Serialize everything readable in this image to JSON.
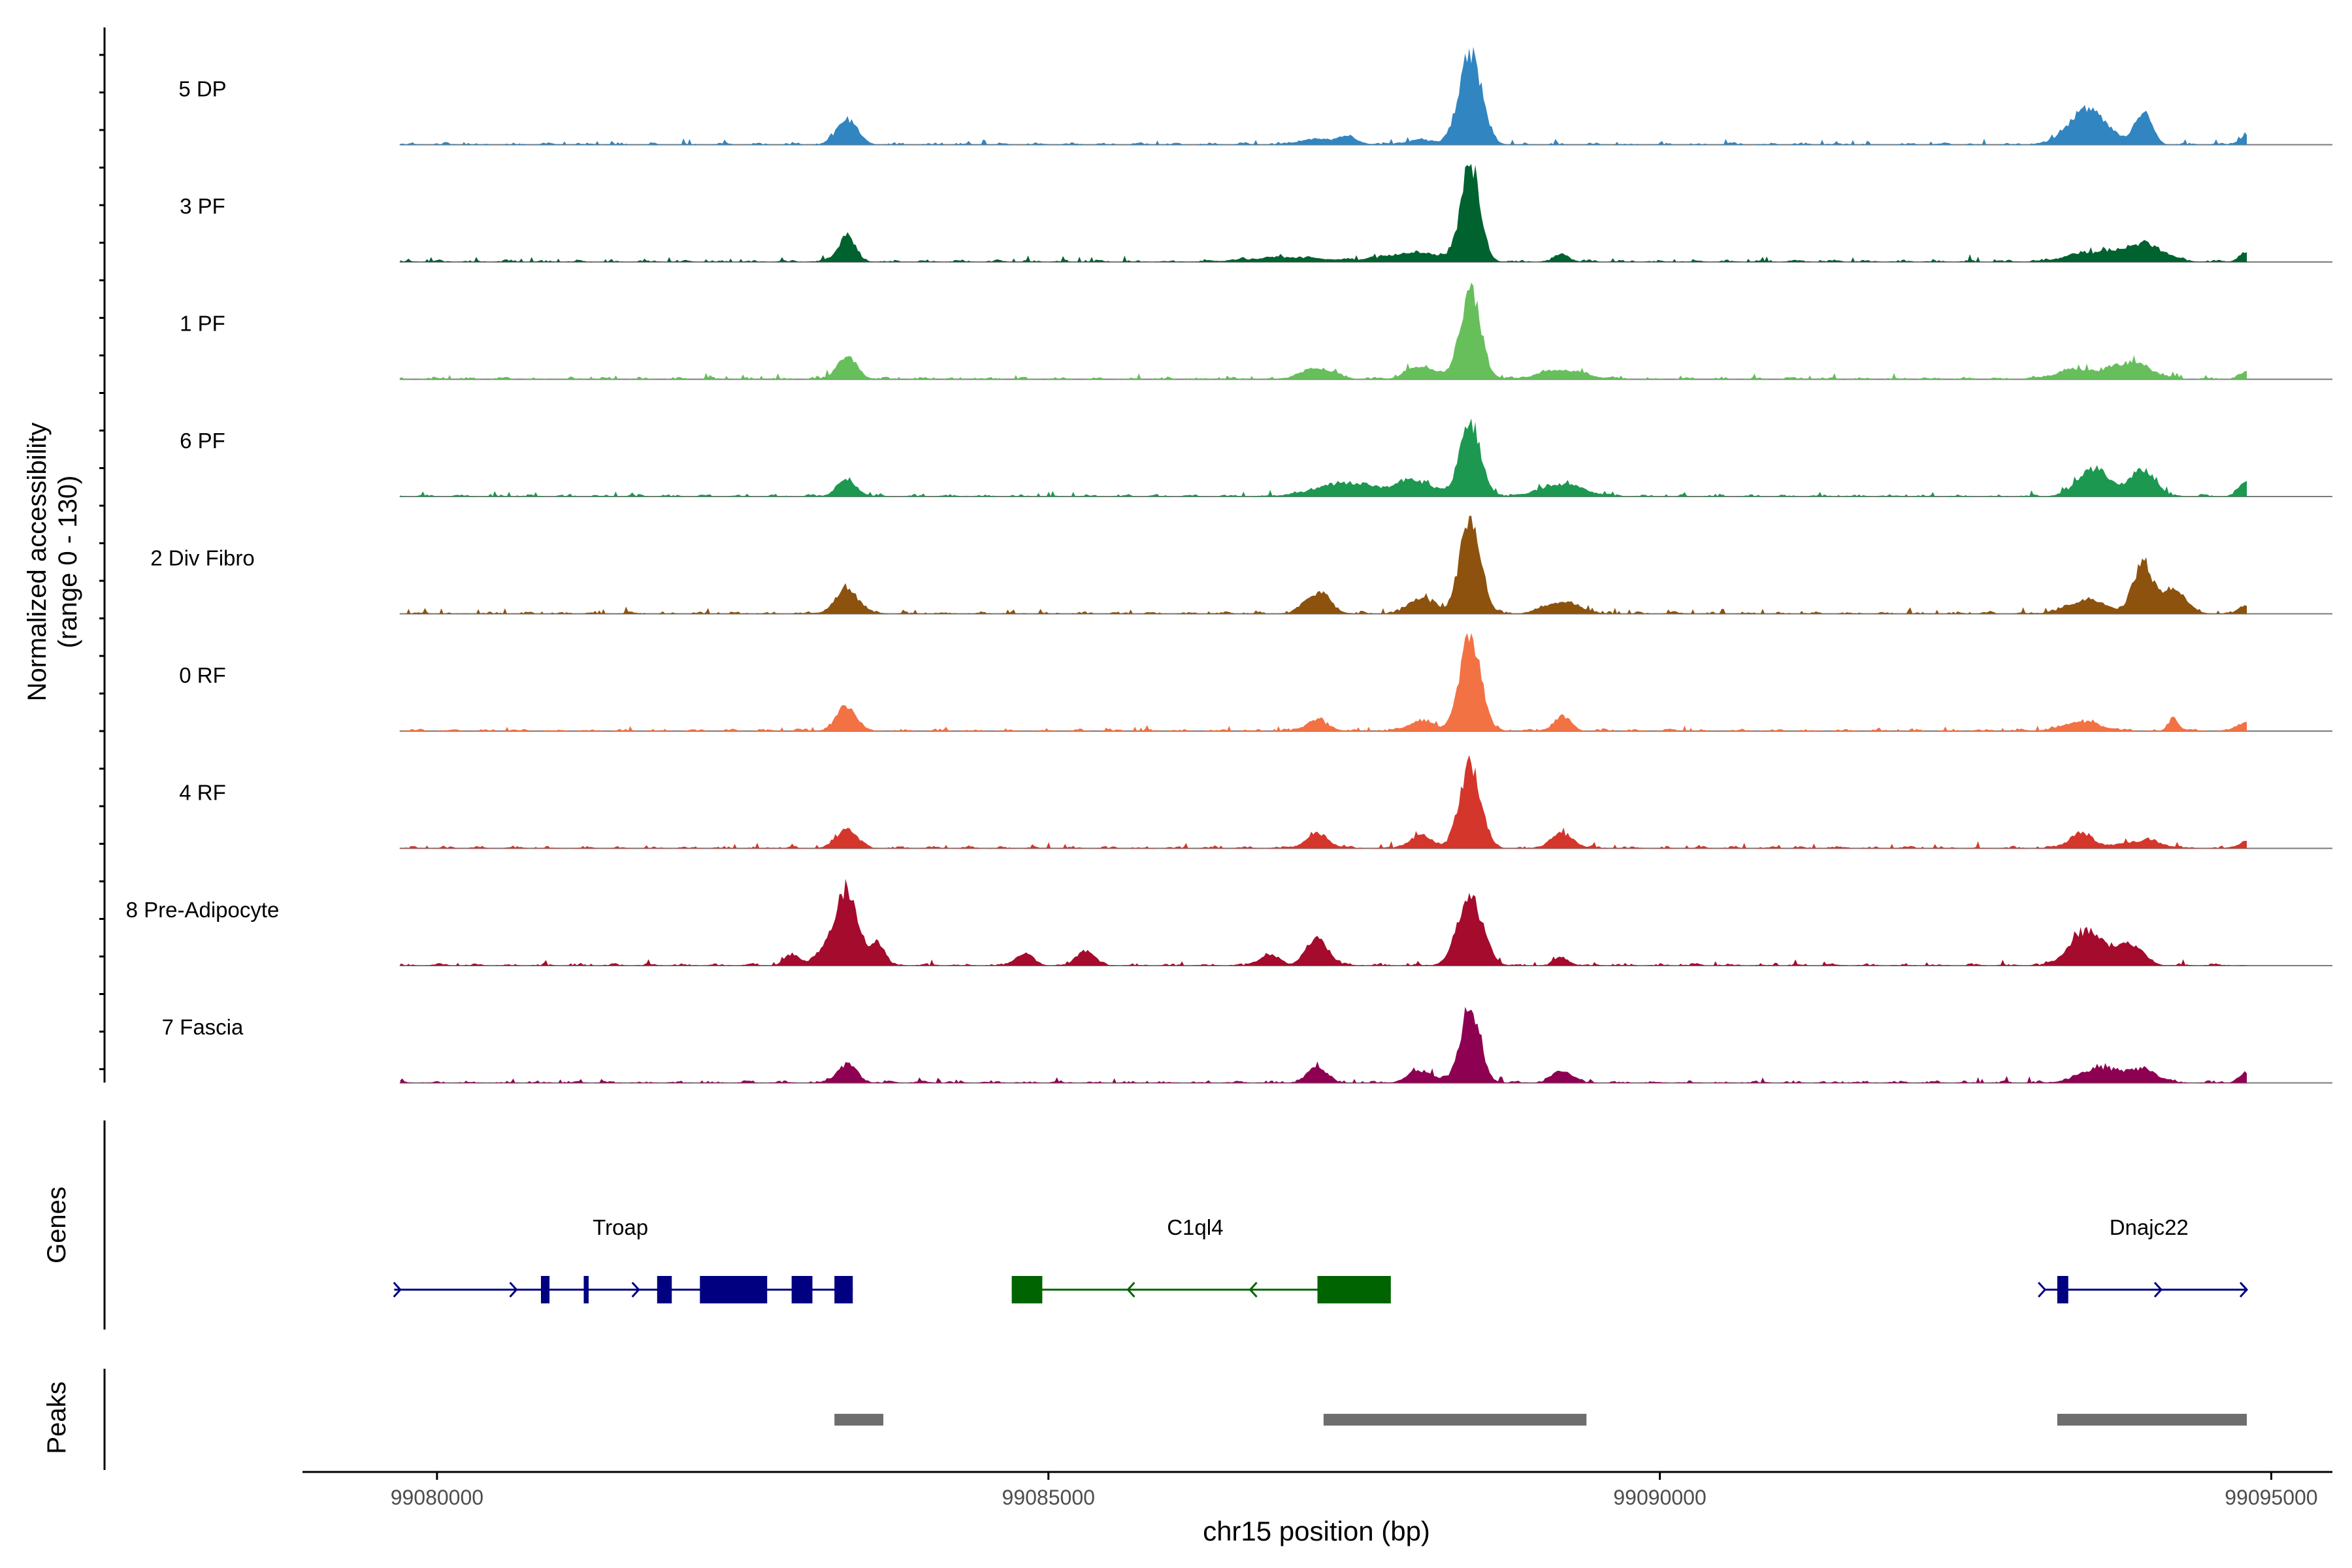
{
  "chart_data": {
    "type": "area",
    "chromosome": "chr15",
    "xlabel": "chr15 position (bp)",
    "xlim": [
      99078900,
      99095500
    ],
    "x_ticks": [
      99080000,
      99085000,
      99090000,
      99095000
    ],
    "x_tick_labels": [
      "99080000",
      "99085000",
      "99090000",
      "99095000"
    ],
    "y_axis_label_line1": "Normalized accessibility",
    "y_axis_label_line2": "(range 0 - 130)",
    "ylim": [
      0,
      130
    ],
    "track_range_x": [
      99079700,
      99094800
    ],
    "series": [
      {
        "name": "5 DP",
        "color": "#3185C1",
        "peaks": [
          [
            99083350,
            34,
            80
          ],
          [
            99087200,
            7,
            150
          ],
          [
            99087450,
            9,
            80
          ],
          [
            99088050,
            6,
            120
          ],
          [
            99088450,
            125,
            90
          ],
          [
            99093500,
            48,
            150
          ],
          [
            99093950,
            40,
            70
          ],
          [
            99094800,
            12,
            60
          ]
        ]
      },
      {
        "name": "3 PF",
        "color": "#00622F",
        "peaks": [
          [
            99083350,
            34,
            70
          ],
          [
            99086950,
            6,
            300
          ],
          [
            99088000,
            12,
            250
          ],
          [
            99088450,
            130,
            75
          ],
          [
            99089200,
            10,
            60
          ],
          [
            99093500,
            12,
            180
          ],
          [
            99093950,
            24,
            160
          ],
          [
            99094800,
            12,
            60
          ]
        ]
      },
      {
        "name": "1 PF",
        "color": "#67BF5C",
        "peaks": [
          [
            99083350,
            30,
            80
          ],
          [
            99087200,
            14,
            130
          ],
          [
            99088050,
            18,
            110
          ],
          [
            99088450,
            115,
            85
          ],
          [
            99089200,
            12,
            180
          ],
          [
            99093400,
            12,
            160
          ],
          [
            99093850,
            22,
            160
          ],
          [
            99094800,
            10,
            60
          ]
        ]
      },
      {
        "name": "6 PF",
        "color": "#1C9850",
        "peaks": [
          [
            99083350,
            22,
            80
          ],
          [
            99087450,
            18,
            250
          ],
          [
            99088000,
            20,
            140
          ],
          [
            99088450,
            98,
            85
          ],
          [
            99089200,
            16,
            180
          ],
          [
            99093550,
            36,
            130
          ],
          [
            99093950,
            36,
            100
          ],
          [
            99094800,
            20,
            60
          ]
        ]
      },
      {
        "name": "2 Div Fibro",
        "color": "#8C520E",
        "peaks": [
          [
            99083350,
            34,
            90
          ],
          [
            99087200,
            28,
            100
          ],
          [
            99088050,
            22,
            100
          ],
          [
            99088450,
            128,
            85
          ],
          [
            99089200,
            16,
            140
          ],
          [
            99093500,
            18,
            160
          ],
          [
            99093950,
            68,
            75
          ],
          [
            99094200,
            32,
            100
          ],
          [
            99094800,
            10,
            60
          ]
        ]
      },
      {
        "name": "0 RF",
        "color": "#F27244",
        "peaks": [
          [
            99083350,
            34,
            80
          ],
          [
            99087200,
            14,
            90
          ],
          [
            99088050,
            14,
            100
          ],
          [
            99088450,
            125,
            85
          ],
          [
            99089200,
            18,
            70
          ],
          [
            99093450,
            12,
            150
          ],
          [
            99094200,
            18,
            40
          ],
          [
            99094800,
            14,
            60
          ]
        ]
      },
      {
        "name": "4 RF",
        "color": "#D4362C",
        "peaks": [
          [
            99083350,
            26,
            80
          ],
          [
            99087200,
            20,
            90
          ],
          [
            99088050,
            16,
            100
          ],
          [
            99088450,
            112,
            85
          ],
          [
            99089200,
            20,
            90
          ],
          [
            99093450,
            20,
            100
          ],
          [
            99093950,
            10,
            150
          ],
          [
            99094800,
            10,
            60
          ]
        ]
      },
      {
        "name": "8 Pre-Adipocyte",
        "color": "#A50B2C",
        "peaks": [
          [
            99082900,
            14,
            60
          ],
          [
            99083150,
            16,
            80
          ],
          [
            99083350,
            100,
            90
          ],
          [
            99083600,
            30,
            60
          ],
          [
            99084800,
            16,
            70
          ],
          [
            99085300,
            20,
            70
          ],
          [
            99086800,
            14,
            80
          ],
          [
            99087200,
            36,
            90
          ],
          [
            99088450,
            92,
            100
          ],
          [
            99089200,
            10,
            60
          ],
          [
            99093500,
            46,
            140
          ],
          [
            99093850,
            28,
            100
          ]
        ]
      },
      {
        "name": "7 Fascia",
        "color": "#8E0152",
        "peaks": [
          [
            99083350,
            24,
            80
          ],
          [
            99087200,
            20,
            80
          ],
          [
            99088050,
            16,
            100
          ],
          [
            99088450,
            102,
            80
          ],
          [
            99089200,
            16,
            80
          ],
          [
            99093600,
            20,
            160
          ],
          [
            99093950,
            16,
            120
          ],
          [
            99094800,
            12,
            60
          ]
        ]
      }
    ],
    "genes_label": "Genes",
    "genes": [
      {
        "name": "Troap",
        "color": "#000080",
        "strand": "+",
        "start": 99079650,
        "end": 99083400,
        "label_pos": 99081500,
        "exons": [
          [
            99080850,
            99080920
          ],
          [
            99081200,
            99081240
          ],
          [
            99081800,
            99081920
          ],
          [
            99082150,
            99082700
          ],
          [
            99082900,
            99083070
          ],
          [
            99083250,
            99083400
          ]
        ],
        "arrows": [
          99079700,
          99080650,
          99081650
        ]
      },
      {
        "name": "C1ql4",
        "color": "#006400",
        "strand": "-",
        "start": 99084700,
        "end": 99087800,
        "label_pos": 99086200,
        "exons": [
          [
            99084700,
            99084950
          ],
          [
            99087200,
            99087800
          ]
        ],
        "arrows": [
          99085650,
          99086650
        ]
      },
      {
        "name": "Dnajc22",
        "color": "#000080",
        "strand": "+",
        "start": 99093150,
        "end": 99094800,
        "label_pos": 99094000,
        "exons": [
          [
            99093250,
            99093340
          ]
        ],
        "arrows": [
          99093150,
          99094100,
          99094800
        ]
      }
    ],
    "peaks_label": "Peaks",
    "peak_regions": [
      [
        99083250,
        99083650
      ],
      [
        99087250,
        99089400
      ],
      [
        99093250,
        99094800
      ]
    ],
    "peak_region_color": "#6E6E6E"
  }
}
